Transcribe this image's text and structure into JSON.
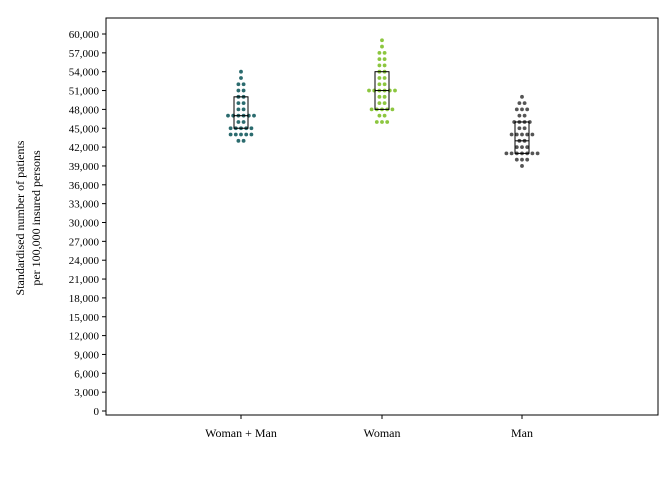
{
  "chart_data": {
    "type": "scatter",
    "subtype": "beeswarm-with-boxplot",
    "ylabel_lines": [
      "Standardised number of patients",
      "per 100,000 insured persons"
    ],
    "ylim": [
      0,
      60000
    ],
    "yticks": [
      0,
      3000,
      6000,
      9000,
      12000,
      15000,
      18000,
      21000,
      24000,
      27000,
      30000,
      33000,
      36000,
      39000,
      42000,
      45000,
      48000,
      51000,
      54000,
      57000,
      60000
    ],
    "ytick_labels": [
      "0",
      "3,000",
      "6,000",
      "9,000",
      "12,000",
      "15,000",
      "18,000",
      "21,000",
      "24,000",
      "27,000",
      "30,000",
      "33,000",
      "36,000",
      "39,000",
      "42,000",
      "45,000",
      "48,000",
      "51,000",
      "54,000",
      "57,000",
      "60,000"
    ],
    "categories": [
      "Woman + Man",
      "Woman",
      "Man"
    ],
    "grid": false,
    "series": [
      {
        "color": "#2b6b6e",
        "values": [
          54000,
          53000,
          52000,
          52000,
          51000,
          51000,
          50000,
          50000,
          49000,
          49000,
          48000,
          48000,
          47000,
          47000,
          47000,
          47000,
          47000,
          47000,
          46000,
          46000,
          45000,
          45000,
          45000,
          45000,
          45000,
          44000,
          44000,
          44000,
          44000,
          44000,
          43000,
          43000
        ],
        "box": {
          "q1": 45000,
          "median": 47000,
          "q3": 50000
        }
      },
      {
        "color": "#8cc63f",
        "values": [
          59000,
          58000,
          57000,
          57000,
          56000,
          56000,
          55000,
          55000,
          54000,
          54000,
          53000,
          53000,
          52000,
          52000,
          51000,
          51000,
          51000,
          51000,
          51000,
          51000,
          50000,
          50000,
          49000,
          49000,
          48000,
          48000,
          48000,
          48000,
          48000,
          47000,
          47000,
          46000,
          46000,
          46000
        ],
        "box": {
          "q1": 48000,
          "median": 51000,
          "q3": 54000
        }
      },
      {
        "color": "#555555",
        "values": [
          50000,
          49000,
          49000,
          48000,
          48000,
          48000,
          47000,
          47000,
          46000,
          46000,
          46000,
          46000,
          45000,
          45000,
          44000,
          44000,
          44000,
          44000,
          44000,
          43000,
          43000,
          42000,
          42000,
          42000,
          41000,
          41000,
          41000,
          41000,
          41000,
          41000,
          41000,
          40000,
          40000,
          40000,
          39000
        ],
        "box": {
          "q1": 41000,
          "median": 43000,
          "q3": 46000
        }
      }
    ]
  }
}
